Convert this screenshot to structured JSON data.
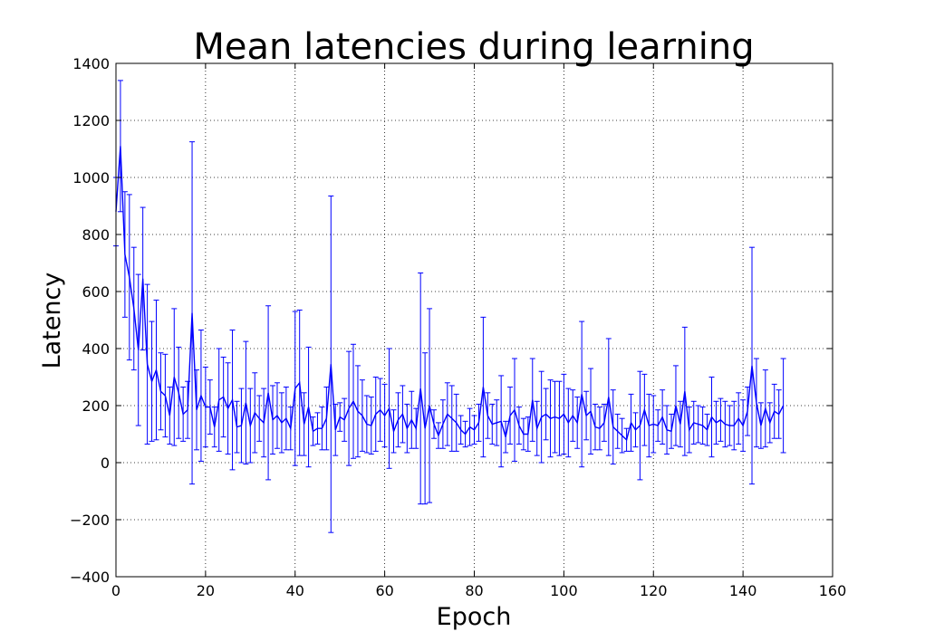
{
  "chart_data": {
    "type": "line",
    "title": "Mean latencies during learning",
    "xlabel": "Epoch",
    "ylabel": "Latency",
    "xlim": [
      0,
      160
    ],
    "ylim": [
      -400,
      1400
    ],
    "xticks": [
      0,
      20,
      40,
      60,
      80,
      100,
      120,
      140,
      160
    ],
    "yticks": [
      -400,
      -200,
      0,
      200,
      400,
      600,
      800,
      1000,
      1200,
      1400
    ],
    "xtick_labels": [
      "0",
      "20",
      "40",
      "60",
      "80",
      "100",
      "120",
      "140",
      "160"
    ],
    "ytick_labels": [
      "−400",
      "−200",
      "0",
      "200",
      "400",
      "600",
      "800",
      "1000",
      "1200",
      "1400"
    ],
    "grid": true,
    "grid_style": "dotted",
    "error_bars": true,
    "series": [
      {
        "color": "#0000ff",
        "x": [
          0,
          1,
          2,
          3,
          4,
          5,
          6,
          7,
          8,
          9,
          10,
          11,
          12,
          13,
          14,
          15,
          16,
          17,
          18,
          19,
          20,
          21,
          22,
          23,
          24,
          25,
          26,
          27,
          28,
          29,
          30,
          31,
          32,
          33,
          34,
          35,
          36,
          37,
          38,
          39,
          40,
          41,
          42,
          43,
          44,
          45,
          46,
          47,
          48,
          49,
          50,
          51,
          52,
          53,
          54,
          55,
          56,
          57,
          58,
          59,
          60,
          61,
          62,
          63,
          64,
          65,
          66,
          67,
          68,
          69,
          70,
          71,
          72,
          73,
          74,
          75,
          76,
          77,
          78,
          79,
          80,
          81,
          82,
          83,
          84,
          85,
          86,
          87,
          88,
          89,
          90,
          91,
          92,
          93,
          94,
          95,
          96,
          97,
          98,
          99,
          100,
          101,
          102,
          103,
          104,
          105,
          106,
          107,
          108,
          109,
          110,
          111,
          112,
          113,
          114,
          115,
          116,
          117,
          118,
          119,
          120,
          121,
          122,
          123,
          124,
          125,
          126,
          127,
          128,
          129,
          130,
          131,
          132,
          133,
          134,
          135,
          136,
          137,
          138,
          139,
          140,
          141,
          142,
          143,
          144,
          145,
          146,
          147,
          148,
          149
        ],
        "y": [
          880,
          1110,
          730,
          650,
          540,
          395,
          645,
          345,
          285,
          325,
          250,
          235,
          165,
          300,
          245,
          170,
          185,
          525,
          185,
          235,
          195,
          195,
          125,
          220,
          230,
          190,
          220,
          125,
          130,
          210,
          130,
          175,
          155,
          140,
          245,
          150,
          165,
          140,
          155,
          120,
          260,
          280,
          135,
          195,
          110,
          120,
          120,
          155,
          345,
          115,
          160,
          150,
          190,
          215,
          180,
          165,
          135,
          130,
          170,
          185,
          165,
          190,
          110,
          150,
          170,
          120,
          150,
          120,
          260,
          120,
          200,
          135,
          95,
          135,
          170,
          155,
          140,
          115,
          100,
          125,
          115,
          140,
          265,
          165,
          135,
          140,
          145,
          90,
          165,
          185,
          130,
          100,
          100,
          220,
          120,
          160,
          170,
          155,
          160,
          155,
          170,
          140,
          165,
          140,
          240,
          165,
          180,
          125,
          120,
          140,
          230,
          125,
          110,
          95,
          80,
          140,
          115,
          130,
          185,
          130,
          135,
          130,
          160,
          115,
          110,
          200,
          135,
          250,
          115,
          140,
          135,
          130,
          115,
          160,
          140,
          150,
          135,
          130,
          130,
          155,
          130,
          180,
          340,
          210,
          130,
          190,
          140,
          180,
          170,
          200
        ],
        "err": [
          120,
          230,
          220,
          290,
          215,
          265,
          250,
          280,
          210,
          245,
          135,
          145,
          100,
          240,
          160,
          95,
          100,
          600,
          140,
          230,
          140,
          95,
          70,
          180,
          140,
          160,
          245,
          90,
          130,
          215,
          130,
          140,
          80,
          120,
          305,
          120,
          115,
          105,
          110,
          75,
          270,
          255,
          110,
          210,
          50,
          55,
          75,
          110,
          590,
          90,
          50,
          75,
          200,
          200,
          160,
          125,
          100,
          100,
          130,
          110,
          110,
          210,
          75,
          95,
          100,
          85,
          100,
          70,
          405,
          265,
          340,
          50,
          45,
          85,
          110,
          115,
          100,
          50,
          45,
          65,
          50,
          65,
          245,
          80,
          70,
          80,
          160,
          55,
          100,
          180,
          65,
          55,
          60,
          145,
          95,
          160,
          90,
          135,
          125,
          130,
          140,
          120,
          90,
          90,
          255,
          85,
          150,
          80,
          75,
          65,
          205,
          130,
          60,
          60,
          40,
          100,
          60,
          190,
          125,
          110,
          100,
          55,
          95,
          85,
          60,
          140,
          80,
          225,
          80,
          75,
          65,
          65,
          55,
          140,
          75,
          75,
          80,
          70,
          85,
          90,
          90,
          85,
          415,
          155,
          80,
          135,
          70,
          95,
          85,
          165
        ]
      }
    ]
  }
}
